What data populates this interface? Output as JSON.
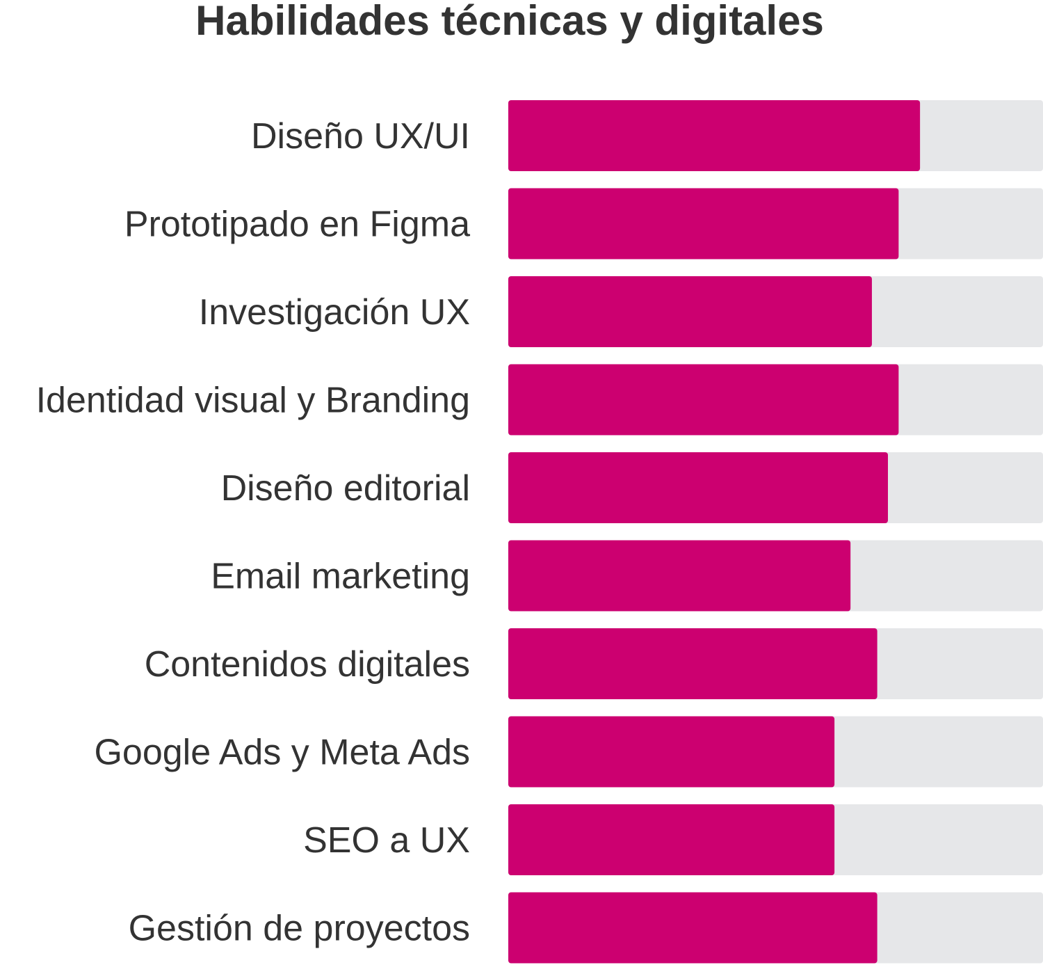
{
  "chart_data": {
    "type": "bar",
    "orientation": "horizontal",
    "title": "Habilidades técnicas y digitales",
    "xlabel": "",
    "ylabel": "",
    "xlim": [
      0,
      100
    ],
    "grid": false,
    "legend": "none",
    "categories": [
      "Diseño UX/UI",
      "Prototipado en Figma",
      "Investigación UX",
      "Identidad visual y Branding",
      "Diseño editorial",
      "Email marketing",
      "Contenidos digitales",
      "Google Ads y Meta Ads",
      "SEO a UX",
      "Gestión de proyectos"
    ],
    "values": [
      77,
      73,
      68,
      73,
      71,
      64,
      69,
      61,
      61,
      69
    ],
    "colors": {
      "bar": "#cc0070",
      "track": "#e6e7e9",
      "text": "#333333"
    }
  }
}
